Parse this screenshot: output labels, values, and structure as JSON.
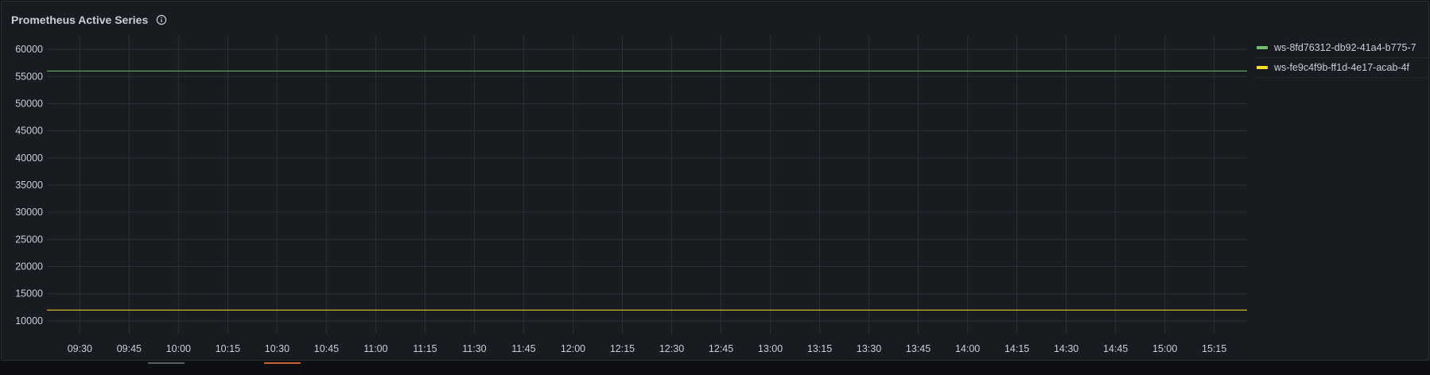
{
  "panel": {
    "title": "Prometheus Active Series",
    "info_icon": "info-circle-icon"
  },
  "colors": {
    "panel_bg": "#181b1f",
    "grid": "#2c2f36",
    "text": "#ccccdc",
    "series_green": "#73bf69",
    "series_yellow": "#fade2a"
  },
  "chart_data": {
    "type": "line",
    "title": "Prometheus Active Series",
    "xlabel": "",
    "ylabel": "",
    "ylim": [
      7500,
      62500
    ],
    "yticks": [
      60000,
      55000,
      50000,
      45000,
      40000,
      35000,
      30000,
      25000,
      20000,
      15000,
      10000
    ],
    "x_start": "09:20",
    "x_end": "15:25",
    "xticks": [
      "09:30",
      "09:45",
      "10:00",
      "10:15",
      "10:30",
      "10:45",
      "11:00",
      "11:15",
      "11:30",
      "11:45",
      "12:00",
      "12:15",
      "12:30",
      "12:45",
      "13:00",
      "13:15",
      "13:30",
      "13:45",
      "14:00",
      "14:15",
      "14:30",
      "14:45",
      "15:00",
      "15:15"
    ],
    "grid": true,
    "legend_position": "right",
    "series": [
      {
        "name": "ws-8fd76312-db92-41a4-b775-7",
        "color": "#73bf69",
        "x": [
          "09:20",
          "15:25"
        ],
        "values": [
          56000,
          56000
        ]
      },
      {
        "name": "ws-fe9c4f9b-ff1d-4e17-acab-4f",
        "color": "#fade2a",
        "x": [
          "09:20",
          "15:25"
        ],
        "values": [
          12000,
          12000
        ]
      }
    ]
  }
}
